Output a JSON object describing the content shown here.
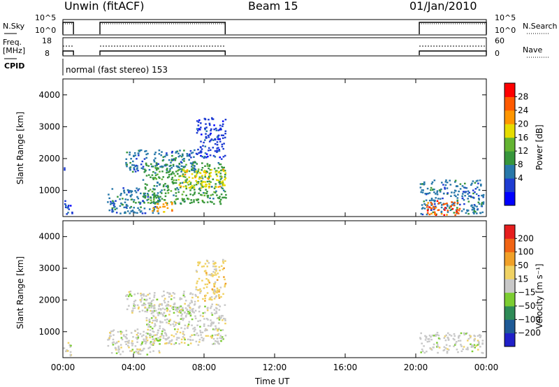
{
  "header": {
    "station": "Unwin (fitACF)",
    "beam": "Beam 15",
    "date": "01/Jan/2010"
  },
  "status": {
    "nsky_label": "N.Sky",
    "nsearch_label": "N.Search",
    "noise_ticks_left": [
      "10^5",
      "10^0"
    ],
    "noise_ticks_right": [
      "10^5",
      "10^0"
    ],
    "freq_label": "Freq.",
    "freq_unit": "[MHz]",
    "freq_ticks": [
      "18",
      "8"
    ],
    "nave_label": "Nave",
    "nave_ticks": [
      "60",
      "0"
    ],
    "cpid_label": "CPID",
    "cpid_text": "normal (fast stereo) 153"
  },
  "chart_data": [
    {
      "type": "heatmap",
      "panel": "power",
      "ylabel": "Slant Range [km]",
      "yticks": [
        1000,
        2000,
        3000,
        4000
      ],
      "ylim": [
        180,
        4500
      ],
      "xticks": [
        "00:00",
        "04:00",
        "08:00",
        "12:00",
        "16:00",
        "20:00",
        "00:00"
      ],
      "xlim_hours": [
        0,
        24
      ],
      "colorbar": {
        "label": "Power [dB]",
        "ticks": [
          "28",
          "24",
          "20",
          "16",
          "12",
          "8",
          "4"
        ],
        "colors": [
          "#0000ff",
          "#1e3cd2",
          "#2878aa",
          "#37963c",
          "#64b432",
          "#e6dc00",
          "#ff9600",
          "#ff5a00",
          "#ff0000"
        ]
      },
      "regions": [
        {
          "t": [
            0.0,
            0.5
          ],
          "range": [
            250,
            700
          ],
          "level": 1
        },
        {
          "t": [
            0.0,
            0.2
          ],
          "range": [
            1550,
            1750
          ],
          "level": 1
        },
        {
          "t": [
            2.5,
            5.5
          ],
          "range": [
            300,
            1100
          ],
          "level": 2
        },
        {
          "t": [
            3.5,
            7.5
          ],
          "range": [
            1600,
            2300
          ],
          "level": 2
        },
        {
          "t": [
            4.5,
            9.2
          ],
          "range": [
            600,
            1900
          ],
          "level": 3
        },
        {
          "t": [
            5.0,
            6.2
          ],
          "range": [
            350,
            650
          ],
          "level": 6
        },
        {
          "t": [
            6.5,
            9.2
          ],
          "range": [
            1100,
            1700
          ],
          "level": 5
        },
        {
          "t": [
            7.5,
            9.2
          ],
          "range": [
            2000,
            3300
          ],
          "level": 1
        },
        {
          "t": [
            20.2,
            23.8
          ],
          "range": [
            250,
            1350
          ],
          "level": 2
        },
        {
          "t": [
            20.5,
            22.5
          ],
          "range": [
            250,
            700
          ],
          "level": 7
        }
      ]
    },
    {
      "type": "heatmap",
      "panel": "velocity",
      "ylabel": "Slant Range [km]",
      "yticks": [
        1000,
        2000,
        3000,
        4000
      ],
      "ylim": [
        180,
        4500
      ],
      "xticks": [
        "00:00",
        "04:00",
        "08:00",
        "12:00",
        "16:00",
        "20:00",
        "00:00"
      ],
      "xlabel": "Time UT",
      "colorbar": {
        "label": "Velocity [m s⁻¹]",
        "ticks": [
          "200",
          "100",
          "50",
          "15",
          "−15",
          "−50",
          "−100",
          "−200"
        ],
        "colors": [
          "#2020c8",
          "#1e5a96",
          "#2e8b57",
          "#7ccd32",
          "#c8c8c8",
          "#f0d264",
          "#f0a028",
          "#f06414",
          "#e61e1e"
        ]
      },
      "regions": [
        {
          "t": [
            0.0,
            0.5
          ],
          "range": [
            250,
            700
          ],
          "level": 4
        },
        {
          "t": [
            2.5,
            5.5
          ],
          "range": [
            300,
            1100
          ],
          "level": 4
        },
        {
          "t": [
            3.5,
            7.5
          ],
          "range": [
            1600,
            2300
          ],
          "level": 4
        },
        {
          "t": [
            4.5,
            9.2
          ],
          "range": [
            600,
            1900
          ],
          "level": 4
        },
        {
          "t": [
            7.5,
            9.2
          ],
          "range": [
            2000,
            3300
          ],
          "level": 5
        },
        {
          "t": [
            20.2,
            23.8
          ],
          "range": [
            350,
            1000
          ],
          "level": 4
        }
      ]
    }
  ]
}
